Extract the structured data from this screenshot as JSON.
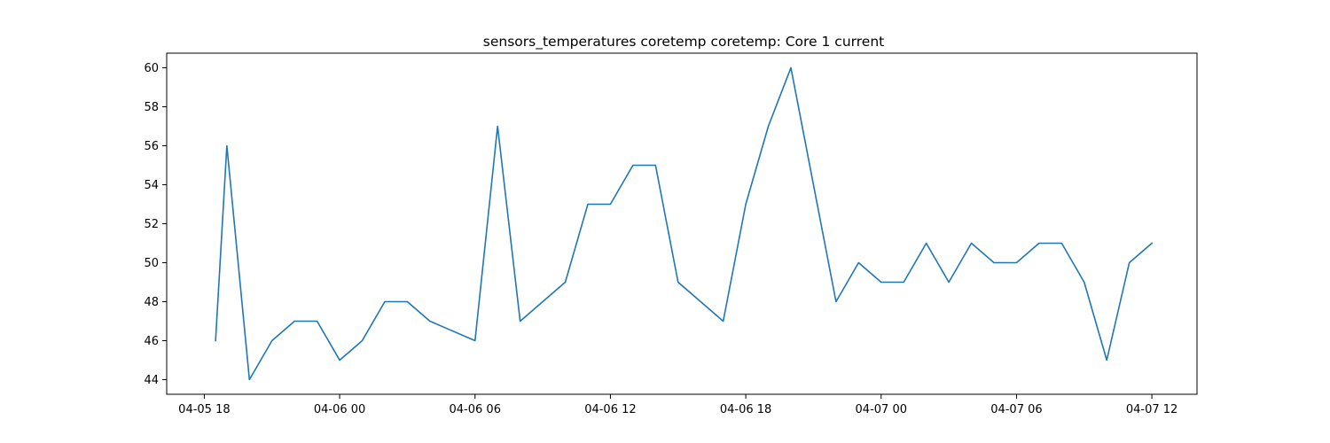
{
  "chart_data": {
    "type": "line",
    "title": "sensors_temperatures coretemp coretemp: Core 1 current",
    "xlabel": "",
    "ylabel": "",
    "xlim": [
      "2024-04-05 16:20",
      "2024-04-07 14:00"
    ],
    "ylim": [
      43.25,
      60.75
    ],
    "x_ticks": [
      {
        "value": "2024-04-05 18:00",
        "label": "04-05 18"
      },
      {
        "value": "2024-04-06 00:00",
        "label": "04-06 00"
      },
      {
        "value": "2024-04-06 06:00",
        "label": "04-06 06"
      },
      {
        "value": "2024-04-06 12:00",
        "label": "04-06 12"
      },
      {
        "value": "2024-04-06 18:00",
        "label": "04-06 18"
      },
      {
        "value": "2024-04-07 00:00",
        "label": "04-07 00"
      },
      {
        "value": "2024-04-07 06:00",
        "label": "04-07 06"
      },
      {
        "value": "2024-04-07 12:00",
        "label": "04-07 12"
      }
    ],
    "y_ticks": [
      44,
      46,
      48,
      50,
      52,
      54,
      56,
      58,
      60
    ],
    "grid": false,
    "colors": {
      "line": "#1f77b4",
      "axes": "#000000"
    },
    "series": [
      {
        "x": [
          "2024-04-05 18:30",
          "2024-04-05 19:00",
          "2024-04-05 20:00",
          "2024-04-05 21:00",
          "2024-04-05 22:00",
          "2024-04-05 23:00",
          "2024-04-06 00:00",
          "2024-04-06 01:00",
          "2024-04-06 02:00",
          "2024-04-06 03:00",
          "2024-04-06 04:00",
          "2024-04-06 06:00",
          "2024-04-06 07:00",
          "2024-04-06 08:00",
          "2024-04-06 10:00",
          "2024-04-06 11:00",
          "2024-04-06 12:00",
          "2024-04-06 13:00",
          "2024-04-06 14:00",
          "2024-04-06 15:00",
          "2024-04-06 17:00",
          "2024-04-06 18:00",
          "2024-04-06 19:00",
          "2024-04-06 20:00",
          "2024-04-06 22:00",
          "2024-04-06 23:00",
          "2024-04-07 00:00",
          "2024-04-07 01:00",
          "2024-04-07 02:00",
          "2024-04-07 03:00",
          "2024-04-07 04:00",
          "2024-04-07 05:00",
          "2024-04-07 06:00",
          "2024-04-07 07:00",
          "2024-04-07 08:00",
          "2024-04-07 09:00",
          "2024-04-07 10:00",
          "2024-04-07 11:00",
          "2024-04-07 12:00"
        ],
        "values": [
          46,
          56,
          44,
          46,
          47,
          47,
          45,
          46,
          48,
          48,
          47,
          46,
          57,
          47,
          49,
          53,
          53,
          55,
          55,
          49,
          47,
          53,
          57,
          60,
          48,
          50,
          49,
          49,
          51,
          49,
          51,
          50,
          50,
          51,
          51,
          49,
          45,
          50,
          51
        ]
      }
    ]
  }
}
